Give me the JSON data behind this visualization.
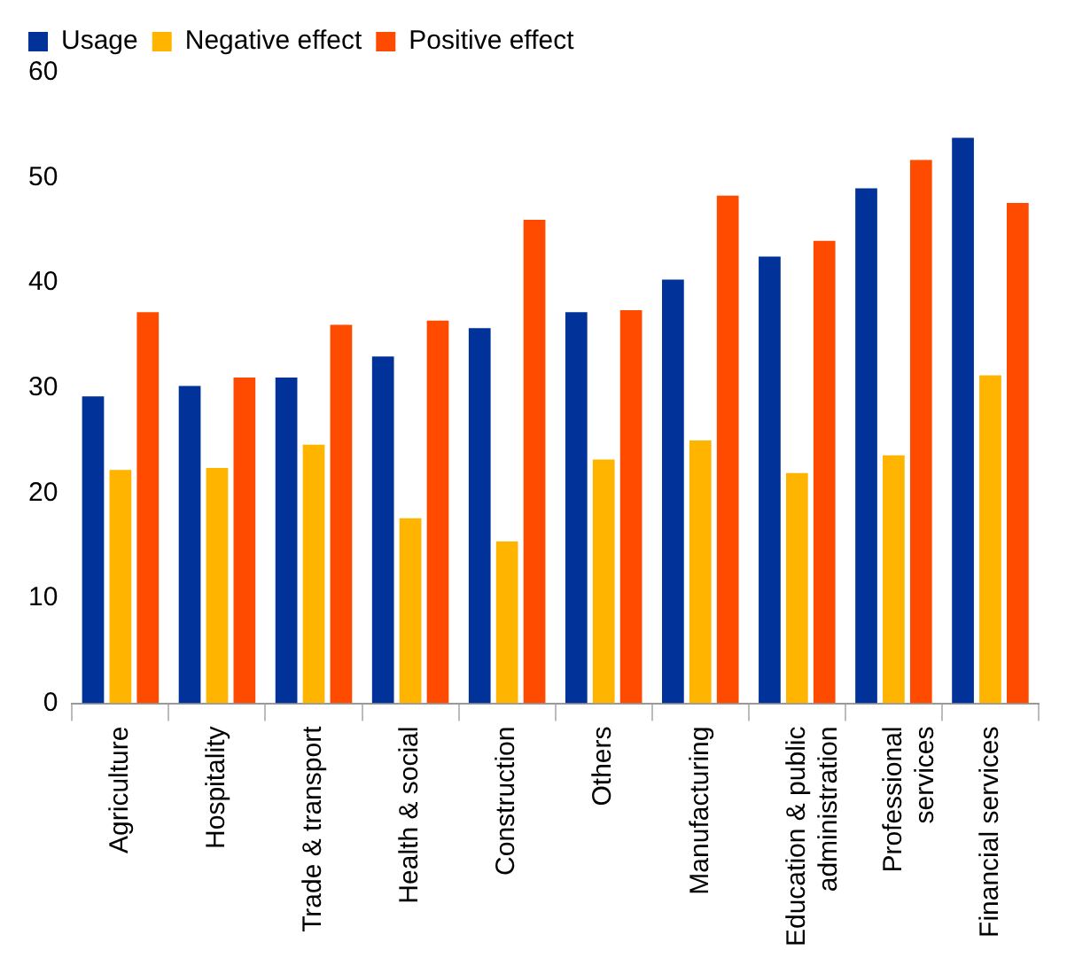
{
  "chart_data": {
    "type": "bar",
    "categories": [
      "Agriculture",
      "Hospitality",
      "Trade & transport",
      "Health & social",
      "Construction",
      "Others",
      "Manufacturing",
      "Education & public administration",
      "Professional services",
      "Financial services"
    ],
    "series": [
      {
        "name": "Usage",
        "color": "#003299",
        "values": [
          29.2,
          30.2,
          31,
          33,
          35.7,
          37.2,
          40.3,
          42.5,
          49,
          53.8
        ]
      },
      {
        "name": "Negative effect",
        "color": "#ffb400",
        "values": [
          22.2,
          22.4,
          24.6,
          17.6,
          15.4,
          23.2,
          25,
          21.9,
          23.6,
          31.2
        ]
      },
      {
        "name": "Positive effect",
        "color": "#ff4b00",
        "values": [
          37.2,
          31,
          36,
          36.4,
          46,
          37.4,
          48.3,
          44,
          51.7,
          47.6
        ]
      }
    ],
    "ylim": [
      0,
      60
    ],
    "yticks": [
      0,
      10,
      20,
      30,
      40,
      50,
      60
    ],
    "grid": false,
    "legend": "top"
  }
}
